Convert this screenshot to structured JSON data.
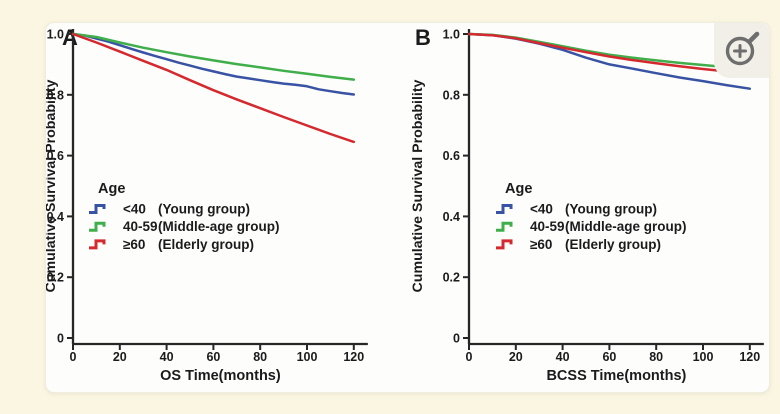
{
  "figure": {
    "page_bg": "#fbf6e2",
    "card_bg": "#fdfdfb",
    "zoom_button": {
      "icon": "magnifier-plus-icon",
      "badge_bg": "#f1efe8",
      "icon_color": "#6e6e6e"
    },
    "axis_color": "#262626",
    "text_color": "#1b1b1b"
  },
  "chart_data": [
    {
      "type": "line",
      "panel_label": "A",
      "xlabel": "OS Time(months)",
      "ylabel": "Cumulative Survival Probability",
      "xticks": [
        0,
        20,
        40,
        60,
        80,
        100,
        120
      ],
      "ytick_labels": [
        "1.0",
        "0.8",
        "0.6",
        "0.4",
        "0.2",
        "0"
      ],
      "ytick_values": [
        1.0,
        0.8,
        0.6,
        0.4,
        0.2,
        0
      ],
      "xlim": [
        0,
        126
      ],
      "ylim": [
        0,
        1.02
      ],
      "grid": false,
      "legend": {
        "title": "Age",
        "position": "center-left",
        "entries": [
          {
            "range": "<40",
            "group": "(Young group)",
            "series": "young",
            "color": "#3953a4"
          },
          {
            "range": "40-59",
            "group": "(Middle-age group)",
            "series": "middle_age",
            "color": "#3fae4b"
          },
          {
            "range": "≥60",
            "group": "(Elderly group)",
            "series": "elderly",
            "color": "#d4292e"
          }
        ]
      },
      "series": [
        {
          "name": "young",
          "label": "<40 (Young group)",
          "color": "#3953a4",
          "points": [
            [
              0,
              1.0
            ],
            [
              5,
              0.995
            ],
            [
              10,
              0.985
            ],
            [
              15,
              0.975
            ],
            [
              20,
              0.963
            ],
            [
              25,
              0.951
            ],
            [
              30,
              0.939
            ],
            [
              35,
              0.928
            ],
            [
              40,
              0.917
            ],
            [
              45,
              0.906
            ],
            [
              50,
              0.896
            ],
            [
              55,
              0.886
            ],
            [
              60,
              0.877
            ],
            [
              65,
              0.868
            ],
            [
              70,
              0.86
            ],
            [
              75,
              0.854
            ],
            [
              80,
              0.848
            ],
            [
              85,
              0.842
            ],
            [
              90,
              0.837
            ],
            [
              95,
              0.833
            ],
            [
              100,
              0.828
            ],
            [
              105,
              0.818
            ],
            [
              110,
              0.812
            ],
            [
              115,
              0.806
            ],
            [
              120,
              0.801
            ]
          ]
        },
        {
          "name": "middle_age",
          "label": "40-59 (Middle-age group)",
          "color": "#3fae4b",
          "points": [
            [
              0,
              1.0
            ],
            [
              10,
              0.99
            ],
            [
              20,
              0.972
            ],
            [
              30,
              0.955
            ],
            [
              40,
              0.94
            ],
            [
              50,
              0.926
            ],
            [
              60,
              0.913
            ],
            [
              70,
              0.901
            ],
            [
              80,
              0.89
            ],
            [
              90,
              0.879
            ],
            [
              100,
              0.869
            ],
            [
              110,
              0.859
            ],
            [
              120,
              0.85
            ]
          ]
        },
        {
          "name": "elderly",
          "label": "≥60 (Elderly group)",
          "color": "#d4292e",
          "points": [
            [
              0,
              1.0
            ],
            [
              10,
              0.972
            ],
            [
              20,
              0.942
            ],
            [
              30,
              0.912
            ],
            [
              40,
              0.882
            ],
            [
              50,
              0.848
            ],
            [
              60,
              0.815
            ],
            [
              70,
              0.785
            ],
            [
              80,
              0.756
            ],
            [
              90,
              0.727
            ],
            [
              100,
              0.699
            ],
            [
              110,
              0.671
            ],
            [
              120,
              0.645
            ]
          ]
        }
      ]
    },
    {
      "type": "line",
      "panel_label": "B",
      "xlabel": "BCSS Time(months)",
      "ylabel": "Cumulative Survival Probability",
      "xticks": [
        0,
        20,
        40,
        60,
        80,
        100,
        120
      ],
      "ytick_labels": [
        "1.0",
        "0.8",
        "0.6",
        "0.4",
        "0.2",
        "0"
      ],
      "ytick_values": [
        1.0,
        0.8,
        0.6,
        0.4,
        0.2,
        0
      ],
      "xlim": [
        0,
        126
      ],
      "ylim": [
        0,
        1.02
      ],
      "grid": false,
      "legend": {
        "title": "Age",
        "position": "center-left",
        "entries": [
          {
            "range": "<40",
            "group": "(Young group)",
            "series": "young",
            "color": "#3953a4"
          },
          {
            "range": "40-59",
            "group": "(Middle-age group)",
            "series": "middle_age",
            "color": "#3fae4b"
          },
          {
            "range": "≥60",
            "group": "(Elderly group)",
            "series": "elderly",
            "color": "#d4292e"
          }
        ]
      },
      "series": [
        {
          "name": "young",
          "label": "<40 (Young group)",
          "color": "#3953a4",
          "points": [
            [
              0,
              1.0
            ],
            [
              10,
              0.996
            ],
            [
              20,
              0.985
            ],
            [
              30,
              0.968
            ],
            [
              40,
              0.948
            ],
            [
              50,
              0.922
            ],
            [
              60,
              0.9
            ],
            [
              70,
              0.886
            ],
            [
              80,
              0.871
            ],
            [
              90,
              0.857
            ],
            [
              100,
              0.845
            ],
            [
              110,
              0.832
            ],
            [
              120,
              0.82
            ]
          ]
        },
        {
          "name": "middle_age",
          "label": "40-59 (Middle-age group)",
          "color": "#3fae4b",
          "points": [
            [
              0,
              1.0
            ],
            [
              10,
              0.997
            ],
            [
              20,
              0.988
            ],
            [
              30,
              0.974
            ],
            [
              40,
              0.96
            ],
            [
              50,
              0.945
            ],
            [
              60,
              0.932
            ],
            [
              70,
              0.922
            ],
            [
              80,
              0.913
            ],
            [
              90,
              0.905
            ],
            [
              100,
              0.898
            ],
            [
              110,
              0.891
            ],
            [
              120,
              0.885
            ]
          ]
        },
        {
          "name": "elderly",
          "label": "≥60 (Elderly group)",
          "color": "#d4292e",
          "points": [
            [
              0,
              1.0
            ],
            [
              10,
              0.996
            ],
            [
              20,
              0.986
            ],
            [
              30,
              0.97
            ],
            [
              40,
              0.955
            ],
            [
              50,
              0.94
            ],
            [
              60,
              0.926
            ],
            [
              70,
              0.914
            ],
            [
              80,
              0.904
            ],
            [
              90,
              0.894
            ],
            [
              100,
              0.885
            ],
            [
              110,
              0.877
            ],
            [
              120,
              0.87
            ]
          ]
        }
      ]
    }
  ]
}
